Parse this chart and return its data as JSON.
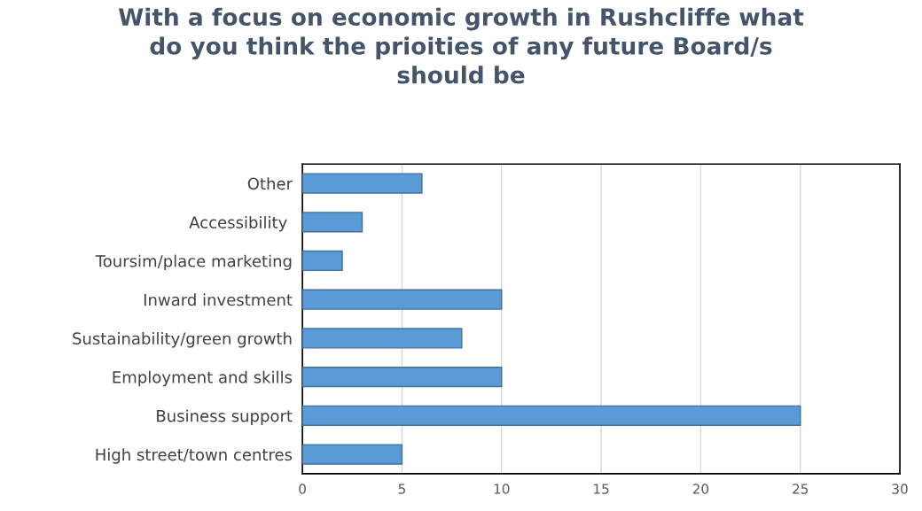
{
  "chart_data": {
    "type": "bar",
    "orientation": "horizontal",
    "title": "With a focus on economic growth in Rushcliffe what\ndo you think the prioities of any future Board/s\nshould be",
    "categories": [
      "Other",
      "Accessibility ",
      "Toursim/place marketing",
      "Inward investment",
      "Sustainability/green growth",
      "Employment and skills",
      "Business support",
      "High street/town centres"
    ],
    "values": [
      6,
      3,
      2,
      10,
      8,
      10,
      25,
      5
    ],
    "color": "#5b9bd5",
    "xlim": [
      0,
      30
    ],
    "xticks": [
      0,
      5,
      10,
      15,
      20,
      25,
      30
    ],
    "grid": "x",
    "legend": false
  }
}
